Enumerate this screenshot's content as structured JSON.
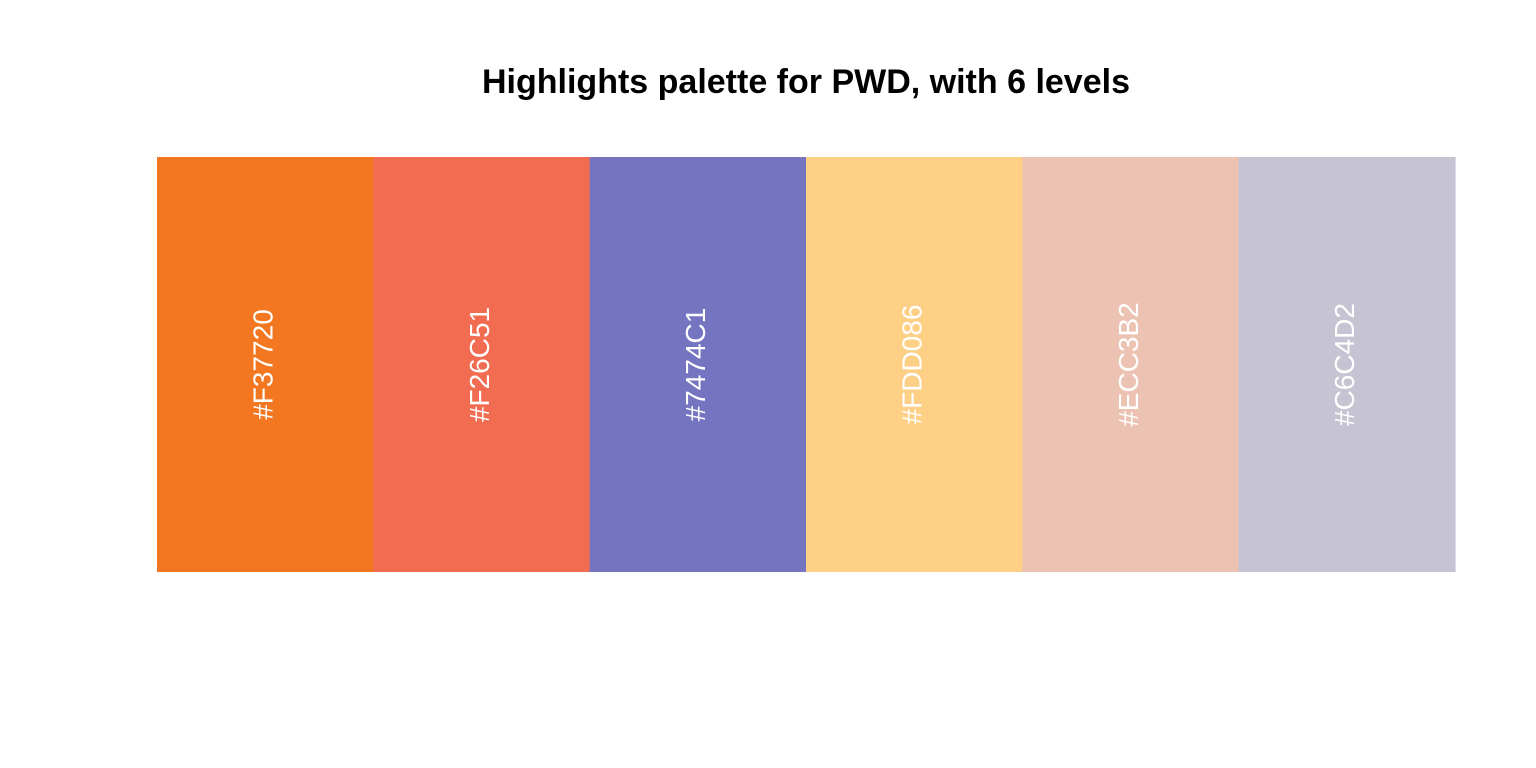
{
  "chart_data": {
    "type": "bar",
    "title": "Highlights palette for PWD, with 6 levels",
    "xlabel": "",
    "ylabel": "",
    "categories": [
      "#F37720",
      "#F26C51",
      "#7474C1",
      "#FDD086",
      "#ECC3B2",
      "#C6C4D2"
    ],
    "values": [
      1,
      1,
      1,
      1,
      1,
      1
    ],
    "colors": [
      "#F37720",
      "#F26C51",
      "#7474C1",
      "#FDD086",
      "#ECC3B2",
      "#C6C4D2"
    ],
    "label_color": "#FFFFFF",
    "grid": false,
    "legend": "none"
  }
}
